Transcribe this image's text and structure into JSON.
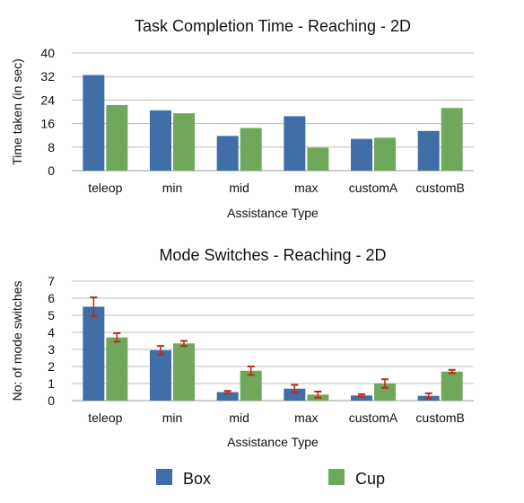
{
  "colors": {
    "box": "#3f6fa6",
    "cup": "#6fa85b",
    "error_bar": "#c0281b",
    "grid": "#bcbcbc"
  },
  "legend": {
    "items": [
      {
        "label": "Box",
        "color": "#3f6fa6"
      },
      {
        "label": "Cup",
        "color": "#6fa85b"
      }
    ]
  },
  "chart_data": [
    {
      "type": "bar",
      "title": "Task Completion Time - Reaching - 2D",
      "xlabel": "Assistance Type",
      "ylabel": "Time taken (in sec)",
      "categories": [
        "teleop",
        "min",
        "mid",
        "max",
        "customA",
        "customB"
      ],
      "ylim": [
        0,
        40
      ],
      "yticks": [
        "0",
        "8",
        "16",
        "24",
        "32",
        "40"
      ],
      "grid": true,
      "series": [
        {
          "name": "Box",
          "values": [
            32.5,
            20.5,
            11.8,
            18.5,
            10.8,
            13.5
          ]
        },
        {
          "name": "Cup",
          "values": [
            22.3,
            19.5,
            14.5,
            7.8,
            11.2,
            21.3
          ]
        }
      ]
    },
    {
      "type": "bar",
      "title": "Mode Switches - Reaching - 2D",
      "xlabel": "Assistance Type",
      "ylabel": "No: of mode switches",
      "categories": [
        "teleop",
        "min",
        "mid",
        "max",
        "customA",
        "customB"
      ],
      "ylim": [
        0,
        7
      ],
      "yticks": [
        "0",
        "1",
        "2",
        "3",
        "4",
        "5",
        "6",
        "7"
      ],
      "grid": true,
      "series": [
        {
          "name": "Box",
          "values": [
            5.5,
            2.95,
            0.5,
            0.7,
            0.3,
            0.28
          ],
          "errors": [
            0.55,
            0.25,
            0.07,
            0.22,
            0.07,
            0.15
          ]
        },
        {
          "name": "Cup",
          "values": [
            3.7,
            3.35,
            1.75,
            0.35,
            1.0,
            1.7
          ],
          "errors": [
            0.25,
            0.15,
            0.25,
            0.18,
            0.25,
            0.1
          ]
        }
      ]
    }
  ]
}
